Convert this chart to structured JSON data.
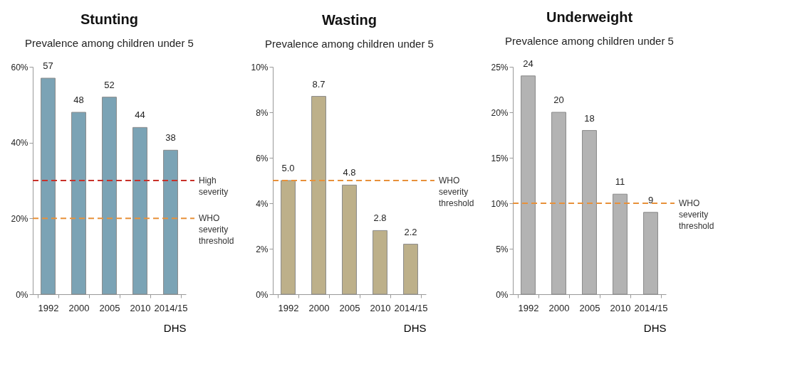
{
  "chart_data": [
    {
      "type": "bar",
      "title": "Stunting",
      "subtitle": "Prevalence among children under 5",
      "xlabel": "DHS",
      "categories": [
        "1992",
        "2000",
        "2005",
        "2010",
        "2014/15"
      ],
      "values": [
        57,
        48,
        52,
        44,
        38
      ],
      "color": "#7ba3b5",
      "ylim": [
        0,
        60
      ],
      "yticks": [
        {
          "value": 0,
          "label": "0%"
        },
        {
          "value": 20,
          "label": "20%"
        },
        {
          "value": 40,
          "label": "40%"
        },
        {
          "value": 60,
          "label": "60%"
        }
      ],
      "data_labels": true,
      "ref_lines": [
        {
          "axis": "y",
          "value": 30,
          "label": "High severity",
          "color": "#c8322a",
          "line_style": "dashed"
        },
        {
          "axis": "y",
          "value": 20,
          "label": "WHO severity threshold",
          "color": "#e8913a",
          "line_style": "dashed"
        }
      ]
    },
    {
      "type": "bar",
      "title": "Wasting",
      "subtitle": "Prevalence among children under 5",
      "xlabel": "DHS",
      "categories": [
        "1992",
        "2000",
        "2005",
        "2010",
        "2014/15"
      ],
      "values": [
        5.0,
        8.7,
        4.8,
        2.8,
        2.2
      ],
      "value_labels": [
        "5.0",
        "8.7",
        "4.8",
        "2.8",
        "2.2"
      ],
      "color": "#bdb08a",
      "ylim": [
        0,
        10
      ],
      "yticks": [
        {
          "value": 0,
          "label": "0%"
        },
        {
          "value": 2,
          "label": "2%"
        },
        {
          "value": 4,
          "label": "4%"
        },
        {
          "value": 6,
          "label": "6%"
        },
        {
          "value": 8,
          "label": "8%"
        },
        {
          "value": 10,
          "label": "10%"
        }
      ],
      "ref_lines": [
        {
          "axis": "y",
          "value": 5,
          "label": "WHO severity threshold",
          "color": "#e8913a",
          "line_style": "dashed"
        }
      ]
    },
    {
      "type": "bar",
      "title": "Underweight",
      "subtitle": "Prevalence among children under 5",
      "xlabel": "DHS",
      "categories": [
        "1992",
        "2000",
        "2005",
        "2010",
        "2014/15"
      ],
      "values": [
        24,
        20,
        18,
        11,
        9
      ],
      "color": "#b3b3b3",
      "ylim": [
        0,
        25
      ],
      "yticks": [
        {
          "value": 0,
          "label": "0%"
        },
        {
          "value": 5,
          "label": "5%"
        },
        {
          "value": 10,
          "label": "10%"
        },
        {
          "value": 15,
          "label": "15%"
        },
        {
          "value": 20,
          "label": "20%"
        },
        {
          "value": 25,
          "label": "25%"
        }
      ],
      "data_labels": true,
      "ref_lines": [
        {
          "axis": "y",
          "value": 10,
          "label": "WHO severity threshold",
          "color": "#e8913a",
          "line_style": "dashed"
        }
      ]
    }
  ]
}
